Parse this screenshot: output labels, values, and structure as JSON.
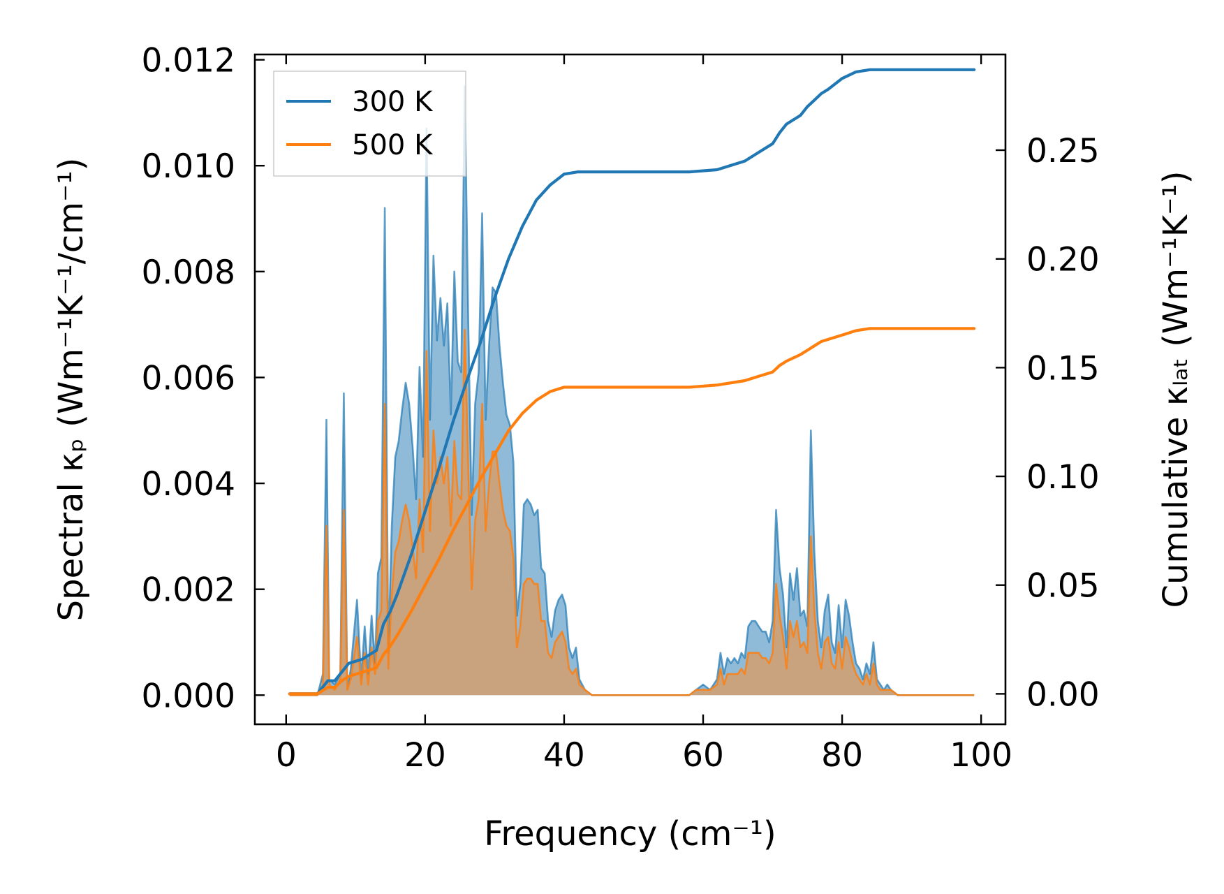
{
  "chart_data": {
    "type": "line",
    "x_label": "Frequency (cm⁻¹)",
    "y_left_label": "Spectral κₚ (Wm⁻¹K⁻¹/cm⁻¹)",
    "y_right_label": "Cumulative κₗₐₜ (Wm⁻¹K⁻¹)",
    "xlim": [
      -4.5,
      103.5
    ],
    "ylim_left": [
      -0.00055,
      0.0121
    ],
    "ylim_right": [
      -0.014,
      0.294
    ],
    "x_ticks": [
      0,
      20,
      40,
      60,
      80,
      100
    ],
    "x_tick_labels": [
      "0",
      "20",
      "40",
      "60",
      "80",
      "100"
    ],
    "y_left_ticks": [
      0,
      0.002,
      0.004,
      0.006,
      0.008,
      0.01,
      0.012
    ],
    "y_left_tick_labels": [
      "0.000",
      "0.002",
      "0.004",
      "0.006",
      "0.008",
      "0.010",
      "0.012"
    ],
    "y_right_ticks": [
      0,
      0.05,
      0.1,
      0.15,
      0.2,
      0.25
    ],
    "y_right_tick_labels": [
      "0.00",
      "0.05",
      "0.10",
      "0.15",
      "0.20",
      "0.25"
    ],
    "legend_position": "upper-left",
    "colors": {
      "s300": "#1f77b4",
      "s500": "#ff7f0e",
      "fill500": "#c9a27e"
    },
    "series": [
      {
        "name": "300 K",
        "color": "#1f77b4",
        "axis": "right",
        "kind": "cumulative",
        "x": [
          0.5,
          4.5,
          5.5,
          6.0,
          7.0,
          8.0,
          9.0,
          10.0,
          11.0,
          12.0,
          13.0,
          14.0,
          15.0,
          16.0,
          17.0,
          18.0,
          20.0,
          22.0,
          24.0,
          26.0,
          28.0,
          30.0,
          32.0,
          34.0,
          36.0,
          38.0,
          40.0,
          42.0,
          44.0,
          50.0,
          58.0,
          62.0,
          66.0,
          68.0,
          70.0,
          71.0,
          72.0,
          74.0,
          75.0,
          76.0,
          77.0,
          78.0,
          80.0,
          82.0,
          84.0,
          86.0,
          90.0,
          99.0
        ],
        "y": [
          0,
          0,
          0.004,
          0.006,
          0.006,
          0.01,
          0.014,
          0.015,
          0.016,
          0.018,
          0.02,
          0.032,
          0.038,
          0.046,
          0.055,
          0.064,
          0.084,
          0.104,
          0.125,
          0.144,
          0.162,
          0.182,
          0.2,
          0.215,
          0.227,
          0.234,
          0.239,
          0.24,
          0.24,
          0.24,
          0.24,
          0.241,
          0.245,
          0.249,
          0.253,
          0.258,
          0.262,
          0.266,
          0.27,
          0.273,
          0.276,
          0.278,
          0.283,
          0.286,
          0.287,
          0.287,
          0.287,
          0.287
        ]
      },
      {
        "name": "500 K",
        "color": "#ff7f0e",
        "axis": "right",
        "kind": "cumulative",
        "x": [
          0.5,
          4.5,
          5.5,
          6.0,
          7.0,
          8.0,
          9.0,
          10.0,
          11.0,
          12.0,
          13.0,
          14.0,
          15.0,
          16.0,
          18.0,
          20.0,
          22.0,
          24.0,
          26.0,
          28.0,
          30.0,
          32.0,
          34.0,
          36.0,
          38.0,
          40.0,
          42.0,
          44.0,
          50.0,
          58.0,
          62.0,
          66.0,
          68.0,
          70.0,
          71.0,
          72.0,
          74.0,
          75.0,
          76.0,
          77.0,
          78.0,
          80.0,
          82.0,
          84.0,
          86.0,
          90.0,
          99.0
        ],
        "y": [
          0,
          0,
          0.002,
          0.003,
          0.003,
          0.006,
          0.008,
          0.009,
          0.01,
          0.011,
          0.012,
          0.018,
          0.022,
          0.027,
          0.038,
          0.05,
          0.062,
          0.075,
          0.087,
          0.099,
          0.11,
          0.121,
          0.129,
          0.135,
          0.139,
          0.141,
          0.141,
          0.141,
          0.141,
          0.141,
          0.142,
          0.144,
          0.146,
          0.148,
          0.151,
          0.153,
          0.156,
          0.158,
          0.16,
          0.162,
          0.163,
          0.165,
          0.167,
          0.168,
          0.168,
          0.168,
          0.168
        ]
      }
    ],
    "spectra": [
      {
        "name": "300 K spectral",
        "color": "#1f77b4",
        "axis": "left",
        "kind": "spectral",
        "x": [
          0.5,
          4.5,
          5.3,
          5.8,
          6.2,
          7.0,
          7.8,
          8.3,
          8.8,
          9.3,
          10.2,
          10.8,
          11.3,
          11.8,
          12.3,
          12.8,
          13.2,
          13.7,
          14.2,
          14.7,
          15.2,
          15.7,
          16.2,
          16.7,
          17.2,
          17.7,
          18.2,
          18.7,
          19.2,
          19.7,
          20.2,
          20.7,
          21.2,
          21.7,
          22.2,
          22.7,
          23.2,
          23.7,
          24.2,
          24.7,
          25.2,
          25.7,
          26.2,
          26.7,
          27.2,
          27.7,
          28.2,
          28.7,
          29.2,
          29.7,
          30.2,
          30.7,
          31.2,
          31.7,
          32.2,
          32.7,
          33.2,
          33.7,
          34.2,
          34.7,
          35.2,
          35.7,
          36.2,
          36.7,
          37.2,
          37.7,
          38.2,
          38.7,
          39.2,
          39.7,
          40.2,
          40.7,
          41.2,
          41.7,
          42.2,
          43.0,
          44.0,
          58.0,
          59.0,
          60.0,
          61.0,
          62.0,
          62.5,
          63.0,
          63.5,
          64.0,
          64.5,
          65.0,
          65.5,
          66.0,
          66.5,
          67.0,
          67.5,
          68.0,
          68.5,
          69.0,
          69.5,
          70.0,
          70.5,
          71.0,
          71.5,
          72.0,
          72.5,
          73.0,
          73.5,
          74.0,
          74.5,
          75.0,
          75.5,
          76.0,
          76.5,
          77.0,
          77.5,
          78.0,
          78.5,
          79.0,
          79.5,
          80.0,
          80.5,
          81.0,
          81.5,
          82.0,
          82.5,
          83.0,
          83.5,
          84.0,
          84.5,
          85.0,
          85.5,
          86.0,
          86.5,
          87.0,
          88.0,
          99.0
        ],
        "y": [
          0,
          0,
          0.0004,
          0.0052,
          0.0003,
          0.0002,
          0.0004,
          0.0057,
          0.0001,
          0.0005,
          0.0018,
          0.0003,
          0.0013,
          0.0004,
          0.0015,
          0.0006,
          0.0023,
          0.0026,
          0.0092,
          0.0008,
          0.0032,
          0.0045,
          0.0048,
          0.0054,
          0.0059,
          0.0055,
          0.0047,
          0.0037,
          0.0062,
          0.0045,
          0.0107,
          0.0052,
          0.0083,
          0.0067,
          0.0075,
          0.0066,
          0.0074,
          0.0053,
          0.008,
          0.0063,
          0.0061,
          0.0115,
          0.0071,
          0.0034,
          0.0055,
          0.0061,
          0.0091,
          0.0052,
          0.0066,
          0.0077,
          0.0076,
          0.0066,
          0.0059,
          0.0053,
          0.0051,
          0.0044,
          0.0015,
          0.0021,
          0.0036,
          0.0037,
          0.0036,
          0.0034,
          0.0035,
          0.0024,
          0.0023,
          0.0014,
          0.0011,
          0.0016,
          0.0018,
          0.0019,
          0.0017,
          0.0009,
          0.0007,
          0.0009,
          0.0003,
          0.0001,
          0,
          0,
          0.0001,
          0.0002,
          0.0001,
          0.0003,
          0.0008,
          0.0004,
          0.0007,
          0.0006,
          0.0007,
          0.0006,
          0.0008,
          0.0007,
          0.0013,
          0.0014,
          0.0014,
          0.0013,
          0.0012,
          0.0012,
          0.001,
          0.0014,
          0.0035,
          0.0024,
          0.0019,
          0.0009,
          0.0023,
          0.0018,
          0.0024,
          0.0015,
          0.0016,
          0.0013,
          0.005,
          0.0027,
          0.0014,
          0.0009,
          0.0016,
          0.0019,
          0.001,
          0.0008,
          0.0017,
          0.0009,
          0.0018,
          0.0015,
          0.001,
          0.0006,
          0.0005,
          0.0003,
          0.0006,
          0.0004,
          0.001,
          0.0003,
          0.0002,
          0.0001,
          0.0002,
          0.0001,
          0,
          0
        ],
        "fill": true
      },
      {
        "name": "500 K spectral",
        "color": "#ff7f0e",
        "axis": "left",
        "kind": "spectral",
        "x": [
          0.5,
          4.5,
          5.3,
          5.8,
          6.2,
          7.0,
          7.8,
          8.3,
          8.8,
          9.3,
          10.2,
          10.8,
          11.3,
          11.8,
          12.3,
          12.8,
          13.2,
          13.7,
          14.2,
          14.7,
          15.2,
          15.7,
          16.2,
          16.7,
          17.2,
          17.7,
          18.2,
          18.7,
          19.2,
          19.7,
          20.2,
          20.7,
          21.2,
          21.7,
          22.2,
          22.7,
          23.2,
          23.7,
          24.2,
          24.7,
          25.2,
          25.7,
          26.2,
          26.7,
          27.2,
          27.7,
          28.2,
          28.7,
          29.2,
          29.7,
          30.2,
          30.7,
          31.2,
          31.7,
          32.2,
          32.7,
          33.2,
          33.7,
          34.2,
          34.7,
          35.2,
          35.7,
          36.2,
          36.7,
          37.2,
          37.7,
          38.2,
          38.7,
          39.2,
          39.7,
          40.2,
          40.7,
          41.2,
          41.7,
          42.2,
          43.0,
          44.0,
          58.0,
          59.0,
          60.0,
          61.0,
          62.0,
          62.5,
          63.0,
          63.5,
          64.0,
          64.5,
          65.0,
          65.5,
          66.0,
          66.5,
          67.0,
          67.5,
          68.0,
          68.5,
          69.0,
          69.5,
          70.0,
          70.5,
          71.0,
          71.5,
          72.0,
          72.5,
          73.0,
          73.5,
          74.0,
          74.5,
          75.0,
          75.5,
          76.0,
          76.5,
          77.0,
          77.5,
          78.0,
          78.5,
          79.0,
          79.5,
          80.0,
          80.5,
          81.0,
          81.5,
          82.0,
          82.5,
          83.0,
          83.5,
          84.0,
          84.5,
          85.0,
          85.5,
          86.0,
          86.5,
          87.0,
          88.0,
          99.0
        ],
        "y": [
          0,
          0,
          0.0002,
          0.0032,
          0.0002,
          0.0001,
          0.0003,
          0.0035,
          0.0001,
          0.0003,
          0.0011,
          0.0002,
          0.0008,
          0.0002,
          0.0009,
          0.0004,
          0.0014,
          0.0016,
          0.0055,
          0.0005,
          0.0019,
          0.0027,
          0.0029,
          0.0033,
          0.0036,
          0.0033,
          0.0028,
          0.0022,
          0.0037,
          0.0027,
          0.0065,
          0.0031,
          0.005,
          0.004,
          0.0045,
          0.004,
          0.0045,
          0.0032,
          0.0048,
          0.0038,
          0.0037,
          0.0069,
          0.0043,
          0.002,
          0.0033,
          0.0037,
          0.0055,
          0.0031,
          0.004,
          0.0046,
          0.0046,
          0.004,
          0.0035,
          0.0032,
          0.0031,
          0.0026,
          0.0009,
          0.0013,
          0.0021,
          0.0022,
          0.0022,
          0.0021,
          0.0021,
          0.0014,
          0.0014,
          0.0008,
          0.0007,
          0.001,
          0.0011,
          0.0012,
          0.001,
          0.0005,
          0.0004,
          0.0005,
          0.0002,
          0.0001,
          0,
          0,
          0.0001,
          0.0001,
          0.0001,
          0.0002,
          0.0005,
          0.0002,
          0.0004,
          0.0004,
          0.0004,
          0.0004,
          0.0005,
          0.0004,
          0.0008,
          0.0008,
          0.0008,
          0.0008,
          0.0007,
          0.0007,
          0.0006,
          0.0008,
          0.0021,
          0.0015,
          0.0011,
          0.0005,
          0.0014,
          0.0011,
          0.0014,
          0.0009,
          0.001,
          0.0008,
          0.003,
          0.0016,
          0.0008,
          0.0005,
          0.001,
          0.0011,
          0.0006,
          0.0005,
          0.001,
          0.0005,
          0.0011,
          0.0009,
          0.0006,
          0.0004,
          0.0003,
          0.0002,
          0.0004,
          0.0002,
          0.0006,
          0.0002,
          0.0001,
          0.0001,
          0.0001,
          0.0001,
          0,
          0
        ],
        "fill": true
      }
    ],
    "legend": [
      {
        "label": "300 K",
        "color": "#1f77b4"
      },
      {
        "label": "500 K",
        "color": "#ff7f0e"
      }
    ]
  }
}
